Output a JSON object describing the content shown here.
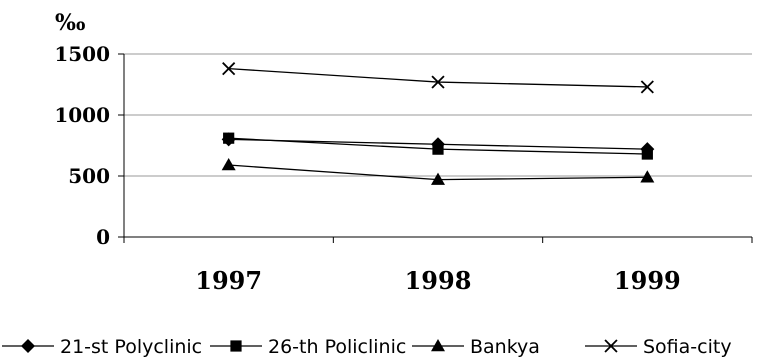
{
  "chart_data": {
    "type": "line",
    "title": "",
    "xlabel": "",
    "ylabel": "‰",
    "categories": [
      "1997",
      "1998",
      "1999"
    ],
    "ylim": [
      0,
      1500
    ],
    "yticks": [
      "0",
      "500",
      "1000",
      "1500"
    ],
    "grid": "horizontal",
    "legend_position": "bottom",
    "series": [
      {
        "name": "21-st Polyclinic",
        "marker": "diamond",
        "values": [
          800,
          760,
          720
        ]
      },
      {
        "name": "26-th Policlinic",
        "marker": "square",
        "values": [
          810,
          720,
          680
        ]
      },
      {
        "name": "Bankya",
        "marker": "triangle",
        "values": [
          590,
          470,
          490
        ]
      },
      {
        "name": "Sofia-city",
        "marker": "x",
        "values": [
          1380,
          1270,
          1230
        ]
      }
    ]
  }
}
